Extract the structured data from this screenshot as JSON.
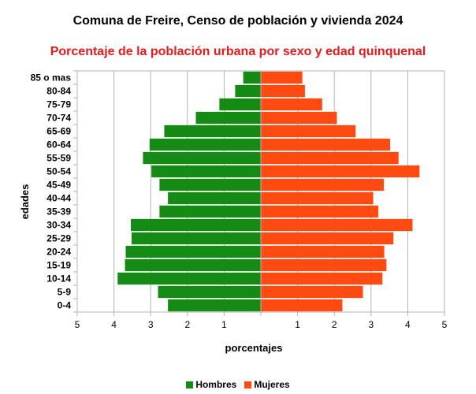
{
  "chart_data": {
    "type": "bar",
    "orientation": "horizontal",
    "layout": "population-pyramid",
    "title": "Comuna de Freire, Censo de población y vivienda 2024",
    "subtitle": "Porcentaje de la población urbana por sexo y edad quinquenal",
    "xlabel": "porcentajes",
    "ylabel": "edades",
    "xlim": [
      -5,
      5
    ],
    "x_ticks": [
      {
        "value": -5,
        "label": "5"
      },
      {
        "value": -4,
        "label": "4"
      },
      {
        "value": -3,
        "label": "3"
      },
      {
        "value": -2,
        "label": "2"
      },
      {
        "value": -1,
        "label": "1"
      },
      {
        "value": 0,
        "label": ""
      },
      {
        "value": 1,
        "label": "1"
      },
      {
        "value": 2,
        "label": "2"
      },
      {
        "value": 3,
        "label": "3"
      },
      {
        "value": 4,
        "label": "4"
      },
      {
        "value": 5,
        "label": "5"
      }
    ],
    "grid": true,
    "legend_position": "bottom",
    "categories": [
      "85 o mas",
      "80-84",
      "75-79",
      "70-74",
      "65-69",
      "60-64",
      "55-59",
      "50-54",
      "45-49",
      "40-44",
      "35-39",
      "30-34",
      "25-29",
      "20-24",
      "15-19",
      "10-14",
      "5-9",
      "0-4"
    ],
    "series": [
      {
        "name": "Hombres",
        "color": "#158a15",
        "side": "left",
        "values": [
          0.48,
          0.7,
          1.13,
          1.77,
          2.63,
          3.03,
          3.21,
          2.98,
          2.76,
          2.53,
          2.76,
          3.54,
          3.52,
          3.68,
          3.7,
          3.9,
          2.8,
          2.53
        ]
      },
      {
        "name": "Mujeres",
        "color": "#ff4a12",
        "side": "right",
        "values": [
          1.13,
          1.2,
          1.67,
          2.07,
          2.58,
          3.52,
          3.75,
          4.32,
          3.35,
          3.06,
          3.2,
          4.13,
          3.61,
          3.36,
          3.42,
          3.31,
          2.78,
          2.22
        ]
      }
    ]
  }
}
